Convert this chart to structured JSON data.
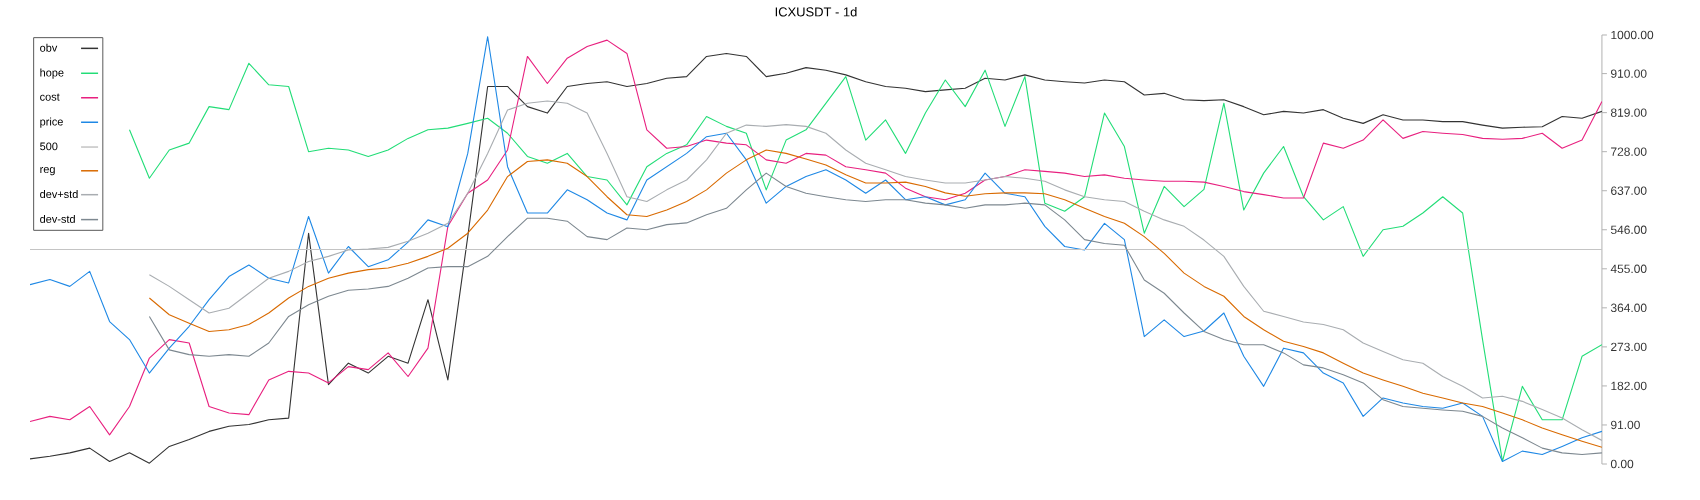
{
  "chart_data": {
    "type": "line",
    "title": "ICXUSDT - 1d",
    "categories": [
      null,
      null,
      null,
      null,
      null,
      null,
      null,
      null,
      null,
      null,
      null,
      null,
      null,
      null,
      null,
      null,
      null,
      null,
      null,
      null,
      null,
      null,
      null,
      null,
      null,
      null,
      null,
      null,
      null,
      null,
      null,
      null,
      null,
      null,
      null,
      null,
      null,
      null,
      null,
      null,
      null,
      null,
      null,
      null,
      null,
      null,
      null,
      null,
      null,
      null,
      null,
      null,
      null,
      null,
      null,
      null,
      null,
      null,
      null,
      null,
      null,
      null,
      null,
      null,
      null,
      null,
      null,
      null,
      null,
      null,
      null,
      null,
      null,
      null,
      null,
      null,
      null,
      null,
      null,
      null
    ],
    "series": [
      {
        "name": "obv",
        "color": "#333333",
        "values": [
          12,
          18,
          26,
          37,
          6,
          26,
          2,
          41,
          57,
          76,
          88,
          92,
          103,
          107,
          538,
          185,
          235,
          212,
          251,
          235,
          383,
          196,
          530,
          880,
          880,
          833,
          818,
          880,
          887,
          891,
          880,
          887,
          899,
          903,
          950,
          957,
          950,
          903,
          911,
          924,
          918,
          907,
          891,
          880,
          876,
          868,
          872,
          876,
          899,
          895,
          907,
          895,
          891,
          888,
          895,
          891,
          860,
          864,
          849,
          847,
          849,
          833,
          814,
          822,
          818,
          826,
          806,
          794,
          814,
          802,
          802,
          798,
          798,
          790,
          783,
          785,
          786,
          810,
          806,
          822
        ]
      },
      {
        "name": "hope",
        "color": "#22dd77",
        "values": [
          null,
          null,
          null,
          null,
          null,
          779,
          666,
          732,
          748,
          833,
          826,
          934,
          884,
          880,
          728,
          736,
          732,
          717,
          732,
          759,
          779,
          783,
          794,
          806,
          771,
          717,
          701,
          724,
          670,
          662,
          604,
          693,
          724,
          744,
          810,
          787,
          771,
          639,
          755,
          779,
          841,
          903,
          755,
          802,
          724,
          818,
          895,
          833,
          918,
          787,
          903,
          608,
          589,
          623,
          818,
          740,
          538,
          647,
          600,
          640,
          841,
          592,
          678,
          740,
          623,
          569,
          600,
          484,
          546,
          554,
          585,
          623,
          585,
          290,
          6,
          181,
          103,
          103,
          251,
          278
        ]
      },
      {
        "name": "cost",
        "color": "#e8207f",
        "values": [
          99,
          111,
          103,
          134,
          68,
          134,
          247,
          290,
          282,
          134,
          119,
          115,
          196,
          216,
          212,
          189,
          227,
          220,
          259,
          204,
          270,
          554,
          631,
          662,
          732,
          950,
          887,
          946,
          973,
          988,
          957,
          779,
          736,
          740,
          755,
          748,
          744,
          709,
          701,
          724,
          720,
          693,
          686,
          678,
          643,
          623,
          616,
          631,
          662,
          670,
          686,
          682,
          678,
          670,
          674,
          666,
          662,
          659,
          659,
          657,
          647,
          635,
          628,
          620,
          620,
          748,
          736,
          755,
          802,
          759,
          775,
          771,
          768,
          759,
          757,
          759,
          771,
          736,
          755,
          845
        ]
      },
      {
        "name": "price",
        "color": "#1e88e5",
        "values": [
          418,
          430,
          414,
          449,
          332,
          290,
          212,
          270,
          321,
          383,
          437,
          464,
          433,
          422,
          577,
          445,
          507,
          460,
          476,
          517,
          569,
          553,
          724,
          996,
          693,
          585,
          585,
          639,
          616,
          585,
          569,
          662,
          693,
          724,
          763,
          771,
          709,
          608,
          647,
          670,
          686,
          662,
          631,
          662,
          616,
          623,
          604,
          616,
          678,
          631,
          623,
          554,
          507,
          499,
          561,
          523,
          297,
          336,
          297,
          310,
          352,
          251,
          181,
          270,
          259,
          212,
          189,
          111,
          154,
          142,
          134,
          130,
          142,
          111,
          6,
          30,
          22,
          41,
          61,
          76
        ]
      },
      {
        "name": "500",
        "color": "#c4c4c4",
        "values": [
          500,
          500,
          500,
          500,
          500,
          500,
          500,
          500,
          500,
          500,
          500,
          500,
          500,
          500,
          500,
          500,
          500,
          500,
          500,
          500,
          500,
          500,
          500,
          500,
          500,
          500,
          500,
          500,
          500,
          500,
          500,
          500,
          500,
          500,
          500,
          500,
          500,
          500,
          500,
          500,
          500,
          500,
          500,
          500,
          500,
          500,
          500,
          500,
          500,
          500,
          500,
          500,
          500,
          500,
          500,
          500,
          500,
          500,
          500,
          500,
          500,
          500,
          500,
          500,
          500,
          500,
          500,
          500,
          500,
          500,
          500,
          500,
          500,
          500,
          500,
          500,
          500,
          500,
          500,
          500
        ]
      },
      {
        "name": "reg",
        "color": "#d96a00",
        "values": [
          null,
          null,
          null,
          null,
          null,
          null,
          387,
          348,
          328,
          309,
          313,
          325,
          352,
          387,
          414,
          433,
          445,
          453,
          457,
          468,
          484,
          503,
          538,
          592,
          670,
          705,
          709,
          701,
          670,
          623,
          581,
          577,
          592,
          612,
          639,
          678,
          709,
          732,
          724,
          711,
          697,
          674,
          655,
          655,
          657,
          647,
          632,
          624,
          630,
          632,
          632,
          630,
          616,
          596,
          577,
          561,
          530,
          491,
          445,
          414,
          391,
          344,
          313,
          286,
          274,
          259,
          235,
          212,
          196,
          181,
          165,
          154,
          142,
          134,
          119,
          103,
          84,
          68,
          53,
          39
        ]
      },
      {
        "name": "dev+std",
        "color": "#a9adb1",
        "values": [
          null,
          null,
          null,
          null,
          null,
          null,
          441,
          414,
          383,
          352,
          363,
          398,
          433,
          449,
          472,
          484,
          499,
          501,
          505,
          519,
          538,
          561,
          631,
          724,
          825,
          841,
          846,
          841,
          818,
          724,
          623,
          612,
          639,
          662,
          709,
          771,
          790,
          787,
          791,
          787,
          771,
          732,
          701,
          686,
          670,
          662,
          655,
          655,
          662,
          670,
          666,
          659,
          639,
          623,
          616,
          612,
          589,
          569,
          554,
          522,
          484,
          414,
          356,
          344,
          331,
          325,
          313,
          282,
          262,
          243,
          235,
          204,
          181,
          154,
          158,
          146,
          127,
          107,
          80,
          55
        ]
      },
      {
        "name": "dev-std",
        "color": "#7d8890",
        "values": [
          null,
          null,
          null,
          null,
          null,
          null,
          344,
          266,
          255,
          251,
          255,
          251,
          282,
          344,
          371,
          391,
          405,
          408,
          414,
          433,
          457,
          460,
          460,
          484,
          530,
          573,
          573,
          566,
          530,
          523,
          550,
          546,
          558,
          562,
          581,
          596,
          639,
          678,
          647,
          631,
          623,
          616,
          612,
          616,
          616,
          608,
          604,
          596,
          604,
          604,
          608,
          604,
          569,
          523,
          514,
          510,
          429,
          398,
          352,
          309,
          290,
          278,
          278,
          259,
          231,
          224,
          208,
          189,
          150,
          134,
          130,
          126,
          123,
          111,
          84,
          61,
          37,
          26,
          22,
          26
        ]
      }
    ],
    "ylim": [
      0,
      1000
    ],
    "yticks": [
      {
        "value": 0,
        "label": "0.00"
      },
      {
        "value": 91,
        "label": "91.00"
      },
      {
        "value": 182,
        "label": "182.00"
      },
      {
        "value": 273,
        "label": "273.00"
      },
      {
        "value": 364,
        "label": "364.00"
      },
      {
        "value": 455,
        "label": "455.00"
      },
      {
        "value": 546,
        "label": "546.00"
      },
      {
        "value": 637,
        "label": "637.00"
      },
      {
        "value": 728,
        "label": "728.00"
      },
      {
        "value": 819,
        "label": "819.00"
      },
      {
        "value": 910,
        "label": "910.00"
      },
      {
        "value": 1000,
        "label": "1000.00"
      }
    ],
    "tick_labels": "y",
    "legend": "top left"
  }
}
